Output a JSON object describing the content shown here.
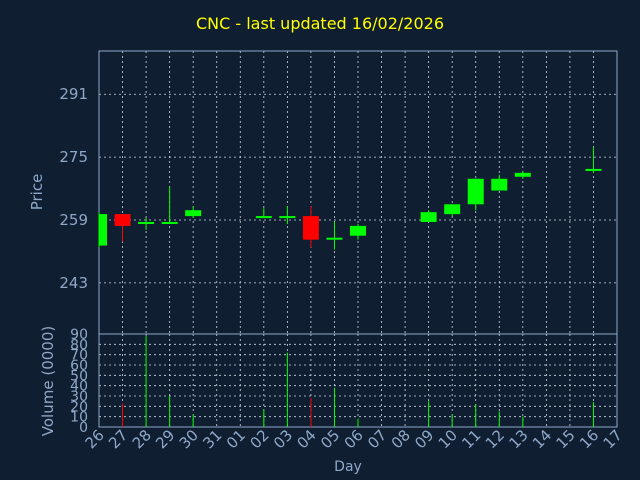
{
  "colors": {
    "background": "#0f1e30",
    "title": "#ffff00",
    "axis_text": "#8fa8c8",
    "frame": "#8fa8c8",
    "grid": "#cfd8e3",
    "up": "#00ff00",
    "down": "#ff0000"
  },
  "chart_data": [
    {
      "type": "candlestick",
      "title": "CNC - last updated 16/02/2026",
      "ylabel": "Price",
      "ylim": [
        230,
        302
      ],
      "yticks": [
        243,
        259,
        275,
        291
      ],
      "grid": true,
      "categories": [
        "26",
        "27",
        "28",
        "29",
        "30",
        "31",
        "01",
        "02",
        "03",
        "04",
        "05",
        "06",
        "07",
        "08",
        "09",
        "10",
        "11",
        "12",
        "13",
        "14",
        "15",
        "16",
        "17"
      ],
      "candles": [
        {
          "day": "26",
          "open": 252.5,
          "close": 260.5,
          "high": 261,
          "low": 252
        },
        {
          "day": "27",
          "open": 260.5,
          "close": 257.5,
          "high": 260.5,
          "low": 253.5
        },
        {
          "day": "28",
          "open": 258,
          "close": 258.5,
          "high": 259.5,
          "low": 256.5
        },
        {
          "day": "29",
          "open": 258.5,
          "close": 258.5,
          "high": 267.5,
          "low": 258
        },
        {
          "day": "30",
          "open": 260,
          "close": 261.5,
          "high": 262.5,
          "low": 259.5
        },
        {
          "day": "02",
          "open": 259.5,
          "close": 260,
          "high": 262,
          "low": 259.5
        },
        {
          "day": "03",
          "open": 259.5,
          "close": 260,
          "high": 262.5,
          "low": 258
        },
        {
          "day": "04",
          "open": 260,
          "close": 254,
          "high": 262.5,
          "low": 252
        },
        {
          "day": "05",
          "open": 254,
          "close": 254.5,
          "high": 258.5,
          "low": 251.5
        },
        {
          "day": "06",
          "open": 255,
          "close": 257.5,
          "high": 258,
          "low": 254
        },
        {
          "day": "09",
          "open": 258.5,
          "close": 261,
          "high": 261.5,
          "low": 258.5
        },
        {
          "day": "10",
          "open": 260.5,
          "close": 263,
          "high": 263,
          "low": 260
        },
        {
          "day": "11",
          "open": 263,
          "close": 269.5,
          "high": 269.5,
          "low": 261.5
        },
        {
          "day": "12",
          "open": 266.5,
          "close": 269.5,
          "high": 270.5,
          "low": 266.5
        },
        {
          "day": "13",
          "open": 270,
          "close": 271,
          "high": 271.5,
          "low": 269.5
        },
        {
          "day": "16",
          "open": 271.5,
          "close": 272,
          "high": 277.5,
          "low": 271
        }
      ]
    },
    {
      "type": "bar",
      "ylabel": "Volume (0000)",
      "xlabel": "Day",
      "ylim": [
        0,
        90
      ],
      "yticks": [
        0,
        10,
        20,
        30,
        40,
        50,
        60,
        70,
        80,
        90
      ],
      "grid": true,
      "categories": [
        "26",
        "27",
        "28",
        "29",
        "30",
        "31",
        "01",
        "02",
        "03",
        "04",
        "05",
        "06",
        "07",
        "08",
        "09",
        "10",
        "11",
        "12",
        "13",
        "14",
        "15",
        "16",
        "17"
      ],
      "bars": [
        {
          "day": "26",
          "value": 0,
          "color": "up"
        },
        {
          "day": "27",
          "value": 23,
          "color": "down"
        },
        {
          "day": "28",
          "value": 88,
          "color": "up"
        },
        {
          "day": "29",
          "value": 30,
          "color": "up"
        },
        {
          "day": "30",
          "value": 12,
          "color": "up"
        },
        {
          "day": "02",
          "value": 17,
          "color": "up"
        },
        {
          "day": "03",
          "value": 72,
          "color": "up"
        },
        {
          "day": "04",
          "value": 28,
          "color": "down"
        },
        {
          "day": "05",
          "value": 38,
          "color": "up"
        },
        {
          "day": "06",
          "value": 8,
          "color": "up"
        },
        {
          "day": "09",
          "value": 25,
          "color": "up"
        },
        {
          "day": "10",
          "value": 12,
          "color": "up"
        },
        {
          "day": "11",
          "value": 22,
          "color": "up"
        },
        {
          "day": "12",
          "value": 15,
          "color": "up"
        },
        {
          "day": "13",
          "value": 10,
          "color": "up"
        },
        {
          "day": "16",
          "value": 24,
          "color": "up"
        }
      ]
    }
  ]
}
